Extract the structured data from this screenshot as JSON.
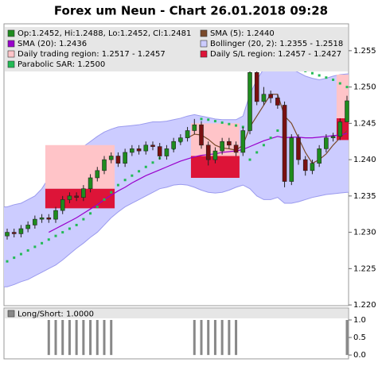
{
  "chart_data": [
    {
      "type": "candlestick",
      "title": "Forex um Neun - Chart 26.01.2018 09:28",
      "ylim": [
        1.2199,
        1.2587
      ],
      "yticks": [
        {
          "value": 1.22,
          "label": "1.220"
        },
        1.225,
        {
          "value": 1.23,
          "label": "1.230"
        },
        1.235,
        {
          "value": 1.24,
          "label": "1.240"
        },
        1.245,
        {
          "value": 1.25,
          "label": "1.250"
        },
        1.255
      ],
      "candles": {
        "name": "Op:1.2452, Hi:1.2488, Lo:1.2452, Cl:1.2481",
        "up_color": "#1e8c1e",
        "down_color": "#7a1010",
        "open": [
          1.2295,
          1.23,
          1.2298,
          1.2305,
          1.231,
          1.2318,
          1.232,
          1.2318,
          1.233,
          1.2345,
          1.235,
          1.2348,
          1.236,
          1.2375,
          1.2385,
          1.24,
          1.2405,
          1.2395,
          1.241,
          1.2415,
          1.2412,
          1.242,
          1.2418,
          1.2405,
          1.2415,
          1.2425,
          1.243,
          1.244,
          1.2448,
          1.242,
          1.24,
          1.2412,
          1.2425,
          1.242,
          1.241,
          1.244,
          1.252,
          1.248,
          1.249,
          1.2485,
          1.2475,
          1.237,
          1.243,
          1.24,
          1.2385,
          1.2395,
          1.2415,
          1.243,
          1.2432,
          1.2452
        ],
        "high": [
          1.2305,
          1.2305,
          1.231,
          1.2315,
          1.2323,
          1.2325,
          1.2325,
          1.2335,
          1.235,
          1.2355,
          1.2355,
          1.2365,
          1.238,
          1.239,
          1.2405,
          1.241,
          1.241,
          1.2415,
          1.242,
          1.242,
          1.2425,
          1.2425,
          1.2423,
          1.242,
          1.243,
          1.2435,
          1.2445,
          1.2456,
          1.2453,
          1.2425,
          1.2417,
          1.243,
          1.243,
          1.2425,
          1.2445,
          1.253,
          1.2525,
          1.25,
          1.2495,
          1.249,
          1.248,
          1.2435,
          1.2435,
          1.2405,
          1.24,
          1.242,
          1.2435,
          1.2437,
          1.2457,
          1.2488
        ],
        "low": [
          1.229,
          1.2293,
          1.2293,
          1.23,
          1.2305,
          1.2313,
          1.2313,
          1.2313,
          1.2325,
          1.234,
          1.2343,
          1.2343,
          1.2355,
          1.237,
          1.238,
          1.2395,
          1.239,
          1.239,
          1.2405,
          1.2407,
          1.2407,
          1.2413,
          1.24,
          1.24,
          1.241,
          1.242,
          1.2425,
          1.2435,
          1.2415,
          1.2392,
          1.2395,
          1.2407,
          1.2415,
          1.2405,
          1.2405,
          1.2435,
          1.2475,
          1.2475,
          1.2478,
          1.247,
          1.2362,
          1.2365,
          1.2393,
          1.2378,
          1.238,
          1.239,
          1.241,
          1.2425,
          1.2427,
          1.2452
        ],
        "close": [
          1.23,
          1.2298,
          1.2305,
          1.231,
          1.2318,
          1.232,
          1.2318,
          1.233,
          1.2345,
          1.235,
          1.2348,
          1.236,
          1.2375,
          1.2385,
          1.24,
          1.2405,
          1.2395,
          1.241,
          1.2415,
          1.2412,
          1.242,
          1.2418,
          1.2405,
          1.2415,
          1.2425,
          1.243,
          1.244,
          1.2448,
          1.242,
          1.24,
          1.2412,
          1.2425,
          1.242,
          1.241,
          1.244,
          1.252,
          1.248,
          1.249,
          1.2485,
          1.2475,
          1.237,
          1.243,
          1.24,
          1.2385,
          1.2395,
          1.2415,
          1.243,
          1.2432,
          1.2452,
          1.2481
        ]
      },
      "bands": [
        {
          "name": "Bollinger (20, 2): 1.2355 - 1.2518",
          "color": "#ccccff",
          "edge_color": "#9a9aee",
          "upper": [
            1.2335,
            1.2338,
            1.234,
            1.2345,
            1.235,
            1.236,
            1.2375,
            1.2385,
            1.2395,
            1.2405,
            1.2412,
            1.2418,
            1.2425,
            1.2432,
            1.2438,
            1.2442,
            1.2445,
            1.2446,
            1.2447,
            1.2448,
            1.245,
            1.2452,
            1.2452,
            1.2453,
            1.2455,
            1.2457,
            1.246,
            1.2462,
            1.246,
            1.2458,
            1.2456,
            1.2455,
            1.2455,
            1.2455,
            1.246,
            1.249,
            1.251,
            1.2525,
            1.253,
            1.2532,
            1.253,
            1.2525,
            1.252,
            1.2515,
            1.2512,
            1.251,
            1.2512,
            1.2515,
            1.2517,
            1.2518
          ],
          "lower": [
            1.2225,
            1.2228,
            1.2232,
            1.2235,
            1.224,
            1.2245,
            1.225,
            1.2255,
            1.2262,
            1.227,
            1.2278,
            1.2285,
            1.2293,
            1.23,
            1.231,
            1.232,
            1.2328,
            1.2335,
            1.234,
            1.2345,
            1.235,
            1.2355,
            1.236,
            1.2362,
            1.2365,
            1.2366,
            1.2365,
            1.2362,
            1.2358,
            1.2355,
            1.2354,
            1.2355,
            1.2358,
            1.2362,
            1.2365,
            1.236,
            1.235,
            1.2345,
            1.2345,
            1.2348,
            1.234,
            1.234,
            1.2342,
            1.2345,
            1.2348,
            1.235,
            1.2352,
            1.2353,
            1.2354,
            1.2355
          ]
        },
        {
          "name": "Daily trading region: 1.2517 - 1.2457",
          "color": "#ffc4c8",
          "upper": [
            null,
            null,
            null,
            null,
            null,
            null,
            1.242,
            1.242,
            1.242,
            1.242,
            1.242,
            1.242,
            1.242,
            1.242,
            1.242,
            1.242,
            null,
            null,
            null,
            null,
            null,
            null,
            null,
            null,
            null,
            null,
            null,
            1.245,
            1.245,
            1.245,
            1.245,
            1.245,
            1.245,
            1.245,
            null,
            null,
            null,
            null,
            null,
            null,
            null,
            null,
            null,
            null,
            null,
            null,
            null,
            null,
            1.2517,
            1.2517
          ],
          "lower": [
            null,
            null,
            null,
            null,
            null,
            null,
            1.236,
            1.236,
            1.236,
            1.236,
            1.236,
            1.236,
            1.236,
            1.236,
            1.236,
            1.236,
            null,
            null,
            null,
            null,
            null,
            null,
            null,
            null,
            null,
            null,
            null,
            1.2405,
            1.2405,
            1.2405,
            1.2405,
            1.2405,
            1.2405,
            1.2405,
            null,
            null,
            null,
            null,
            null,
            null,
            null,
            null,
            null,
            null,
            null,
            null,
            null,
            null,
            1.2457,
            1.2457
          ]
        },
        {
          "name": "Daily S/L region: 1.2457 - 1.2427",
          "color": "#dd1438",
          "upper": [
            null,
            null,
            null,
            null,
            null,
            null,
            1.236,
            1.236,
            1.236,
            1.236,
            1.236,
            1.236,
            1.236,
            1.236,
            1.236,
            1.236,
            null,
            null,
            null,
            null,
            null,
            null,
            null,
            null,
            null,
            null,
            null,
            1.2405,
            1.2405,
            1.2405,
            1.2405,
            1.2405,
            1.2405,
            1.2405,
            null,
            null,
            null,
            null,
            null,
            null,
            null,
            null,
            null,
            null,
            null,
            null,
            null,
            null,
            1.2457,
            1.2457
          ],
          "lower": [
            null,
            null,
            null,
            null,
            null,
            null,
            1.2333,
            1.2333,
            1.2333,
            1.2333,
            1.2333,
            1.2333,
            1.2333,
            1.2333,
            1.2333,
            1.2333,
            null,
            null,
            null,
            null,
            null,
            null,
            null,
            null,
            null,
            null,
            null,
            1.2375,
            1.2375,
            1.2375,
            1.2375,
            1.2375,
            1.2375,
            1.2375,
            null,
            null,
            null,
            null,
            null,
            null,
            null,
            null,
            null,
            null,
            null,
            null,
            null,
            null,
            1.2427,
            1.2427
          ]
        }
      ],
      "lines": [
        {
          "name": "SMA (5): 1.2440",
          "color": "#7a4a2a",
          "values": [
            null,
            null,
            null,
            null,
            null,
            null,
            null,
            null,
            null,
            null,
            null,
            null,
            null,
            null,
            null,
            null,
            null,
            null,
            null,
            null,
            null,
            null,
            null,
            null,
            null,
            null,
            1.243,
            1.2435,
            1.2434,
            1.2428,
            1.242,
            1.2416,
            1.2415,
            1.2413,
            1.242,
            1.2445,
            1.246,
            1.2475,
            1.249,
            1.249,
            1.246,
            1.245,
            1.243,
            1.241,
            1.2395,
            1.24,
            1.2408,
            1.242,
            1.243,
            1.244
          ]
        },
        {
          "name": "SMA (20): 1.2436",
          "color": "#9900cc",
          "values": [
            null,
            null,
            null,
            null,
            null,
            null,
            1.23,
            1.2305,
            1.231,
            1.2315,
            1.232,
            1.2326,
            1.2332,
            1.2338,
            1.2345,
            1.2351,
            1.2357,
            1.2362,
            1.2368,
            1.2373,
            1.2378,
            1.2382,
            1.2386,
            1.239,
            1.2394,
            1.2398,
            1.2401,
            1.2404,
            1.2406,
            1.2407,
            1.2408,
            1.241,
            1.2411,
            1.2412,
            1.2414,
            1.2418,
            1.2422,
            1.2426,
            1.2429,
            1.2432,
            1.243,
            1.2431,
            1.2431,
            1.243,
            1.243,
            1.2431,
            1.2432,
            1.2433,
            1.2434,
            1.2436
          ]
        }
      ],
      "sar": {
        "name": "Parabolic SAR: 1.2500",
        "color": "#22bb55",
        "values": [
          1.226,
          1.2265,
          1.227,
          1.2275,
          1.228,
          1.2285,
          1.229,
          1.2295,
          1.23,
          1.2305,
          1.231,
          1.2318,
          1.2326,
          1.2335,
          1.2345,
          1.2355,
          1.2365,
          1.2372,
          1.2378,
          1.2384,
          1.239,
          1.2396,
          1.2402,
          1.2408,
          1.2415,
          1.2425,
          1.2435,
          1.2445,
          1.2456,
          1.2455,
          1.2453,
          1.2451,
          1.2449,
          1.2447,
          1.2445,
          1.24,
          1.241,
          1.242,
          1.243,
          1.244,
          1.253,
          1.2528,
          1.2525,
          1.2522,
          1.2519,
          1.2516,
          1.2513,
          1.251,
          1.2505,
          1.25
        ]
      }
    },
    {
      "type": "bar",
      "name": "Long/Short: 1.0000",
      "color": "#888888",
      "ylim": [
        -0.11,
        1.34
      ],
      "yticks": [
        {
          "value": 0,
          "label": "0.0"
        },
        0.5,
        {
          "value": 1,
          "label": "1.0"
        }
      ],
      "values": [
        0,
        0,
        0,
        0,
        0,
        0,
        1,
        1,
        1,
        1,
        1,
        1,
        1,
        1,
        1,
        1,
        0,
        0,
        0,
        0,
        0,
        0,
        0,
        0,
        0,
        0,
        0,
        1,
        1,
        1,
        1,
        1,
        1,
        1,
        0,
        0,
        0,
        0,
        0,
        0,
        0,
        0,
        0,
        0,
        0,
        0,
        0,
        0,
        0,
        1
      ]
    }
  ]
}
